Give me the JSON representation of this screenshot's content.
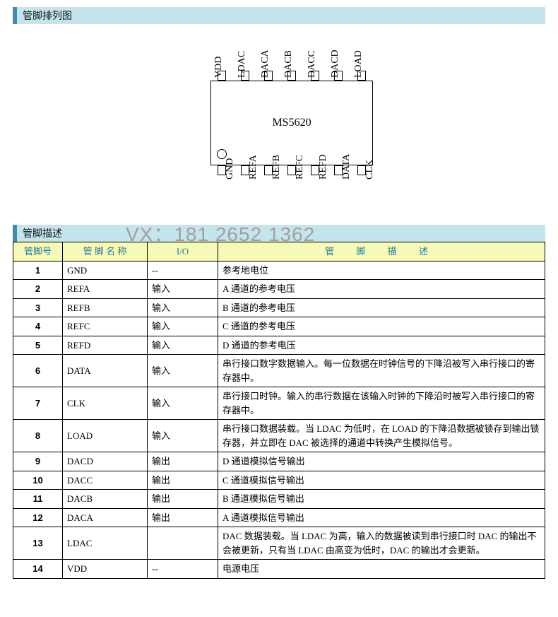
{
  "sections": {
    "pinout_title": "管脚排列图",
    "pindesc_title": "管脚描述"
  },
  "chip": {
    "name": "MS5620",
    "top_pins": [
      "VDD",
      "LDAC",
      "DACA",
      "DACB",
      "DACC",
      "DACD",
      "LOAD"
    ],
    "bottom_pins": [
      "GND",
      "REFA",
      "REFB",
      "REFC",
      "REFD",
      "DATA",
      "CLK"
    ]
  },
  "watermark": "VX：181 2652 1362",
  "table": {
    "headers": {
      "pinno": "管脚号",
      "name": "管 脚 名 称",
      "io": "I/O",
      "desc": "管  脚  描  述"
    },
    "rows": [
      {
        "pinno": "1",
        "name": "GND",
        "io": "--",
        "desc": "参考地电位"
      },
      {
        "pinno": "2",
        "name": "REFA",
        "io": "输入",
        "desc": "A 通道的参考电压"
      },
      {
        "pinno": "3",
        "name": "REFB",
        "io": "输入",
        "desc": "B 通道的参考电压"
      },
      {
        "pinno": "4",
        "name": "REFC",
        "io": "输入",
        "desc": "C 通道的参考电压"
      },
      {
        "pinno": "5",
        "name": "REFD",
        "io": "输入",
        "desc": "D 通道的参考电压"
      },
      {
        "pinno": "6",
        "name": "DATA",
        "io": "输入",
        "desc": "串行接口数字数据输入。每一位数据在时钟信号的下降沿被写入串行接口的寄存器中。"
      },
      {
        "pinno": "7",
        "name": "CLK",
        "io": "输入",
        "desc": "串行接口时钟。输入的串行数据在该输入时钟的下降沿时被写入串行接口的寄存器中。"
      },
      {
        "pinno": "8",
        "name": "LOAD",
        "io": "输入",
        "desc": "串行接口数据装载。当 LDAC 为低时，在 LOAD 的下降沿数据被锁存到输出锁存器，并立即在 DAC 被选择的通道中转换产生模拟信号。"
      },
      {
        "pinno": "9",
        "name": "DACD",
        "io": "输出",
        "desc": "D 通道模拟信号输出"
      },
      {
        "pinno": "10",
        "name": "DACC",
        "io": "输出",
        "desc": "C 通道模拟信号输出"
      },
      {
        "pinno": "11",
        "name": "DACB",
        "io": "输出",
        "desc": "B 通道模拟信号输出"
      },
      {
        "pinno": "12",
        "name": "DACA",
        "io": "输出",
        "desc": "A 通道模拟信号输出"
      },
      {
        "pinno": "13",
        "name": "LDAC",
        "io": "",
        "desc": "DAC 数据装载。当 LDAC 为高，输入的数据被读到串行接口时 DAC 的输出不会被更新，只有当 LDAC 由高变为低时，DAC 的输出才会更新。"
      },
      {
        "pinno": "14",
        "name": "VDD",
        "io": "--",
        "desc": "电源电压"
      }
    ]
  },
  "style": {
    "header_bg": "#c5e5ec",
    "header_border": "#3b90a7",
    "th_bg": "#f6fab8",
    "th_color": "#2a7a9a"
  }
}
